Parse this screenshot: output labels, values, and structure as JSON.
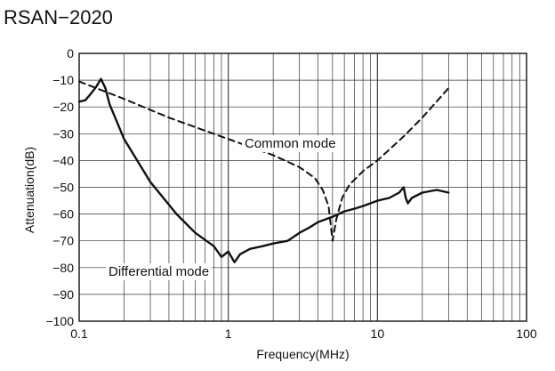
{
  "chart_data": {
    "type": "line",
    "title": "RSAN−2020",
    "xlabel": "Frequency(MHz)",
    "ylabel": "Attenuation(dB)",
    "x_scale": "log",
    "xlim": [
      0.1,
      100
    ],
    "ylim": [
      -100,
      0
    ],
    "grid": true,
    "x_ticks": [
      0.1,
      1,
      10,
      100
    ],
    "x_tick_labels": [
      "0.1",
      "1",
      "10",
      "100"
    ],
    "y_ticks": [
      0,
      -10,
      -20,
      -30,
      -40,
      -50,
      -60,
      -70,
      -80,
      -90,
      -100
    ],
    "y_tick_labels": [
      "0",
      "−10",
      "−20",
      "−30",
      "−40",
      "−50",
      "−60",
      "−70",
      "−80",
      "−90",
      "−100"
    ],
    "annotations": [
      {
        "text": "Common mode",
        "series": "Common mode"
      },
      {
        "text": "Differential mode",
        "series": "Differential mode"
      }
    ],
    "series": [
      {
        "name": "Common mode",
        "style": "dashed",
        "color": "#111111",
        "x": [
          0.1,
          0.2,
          0.4,
          1.0,
          2.0,
          3.0,
          3.8,
          4.3,
          4.7,
          5.0,
          5.3,
          5.8,
          6.5,
          8.0,
          10.0,
          15.0,
          20.0,
          30.0
        ],
        "y": [
          -10.5,
          -17,
          -24,
          -32,
          -38,
          -42.5,
          -46.5,
          -51,
          -57,
          -70,
          -62,
          -54,
          -49,
          -44,
          -40,
          -31,
          -24,
          -13
        ]
      },
      {
        "name": "Differential mode",
        "style": "solid",
        "color": "#111111",
        "x": [
          0.1,
          0.11,
          0.12,
          0.13,
          0.14,
          0.15,
          0.16,
          0.2,
          0.3,
          0.45,
          0.6,
          0.8,
          0.9,
          1.0,
          1.1,
          1.2,
          1.4,
          1.7,
          2.0,
          2.5,
          3.0,
          3.5,
          4.0,
          5.0,
          6.0,
          7.0,
          8.0,
          10.0,
          12.0,
          14.0,
          15.0,
          15.5,
          16.0,
          17.0,
          20.0,
          25.0,
          30.0
        ],
        "y": [
          -18,
          -17.5,
          -15,
          -12.5,
          -9.5,
          -13,
          -19,
          -32,
          -48,
          -60,
          -67,
          -72,
          -76,
          -74,
          -78,
          -75,
          -73,
          -72,
          -71,
          -70,
          -67,
          -65,
          -63,
          -61,
          -59,
          -58,
          -57,
          -55,
          -54,
          -52,
          -50,
          -54,
          -56,
          -54,
          -52,
          -51,
          -52
        ]
      }
    ]
  }
}
